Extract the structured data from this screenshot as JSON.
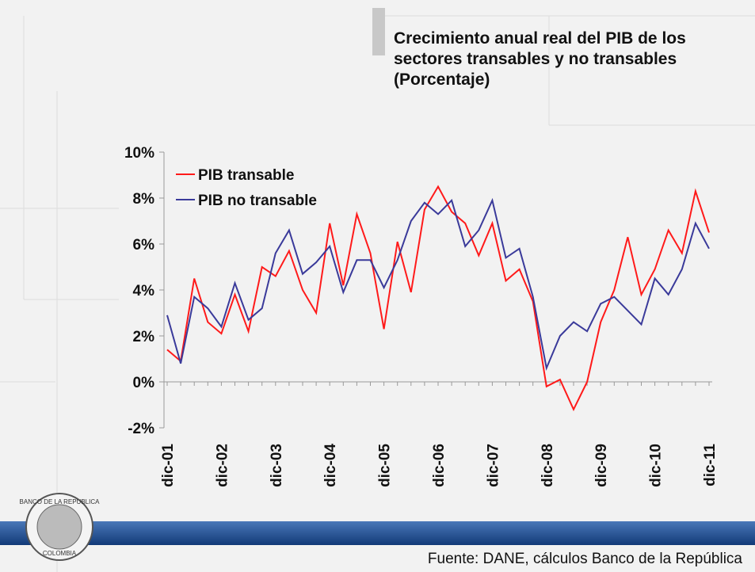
{
  "chart_data": {
    "type": "line",
    "title": "Crecimiento anual real del PIB de los sectores transables y no transables",
    "subtitle": "(Porcentaje)",
    "categories": [
      "dic-01",
      null,
      null,
      null,
      "dic-02",
      null,
      null,
      null,
      "dic-03",
      null,
      null,
      null,
      "dic-04",
      null,
      null,
      null,
      "dic-05",
      null,
      null,
      null,
      "dic-06",
      null,
      null,
      null,
      "dic-07",
      null,
      null,
      null,
      "dic-08",
      null,
      null,
      null,
      "dic-09",
      null,
      null,
      null,
      "dic-10",
      null,
      null,
      null,
      "dic-11"
    ],
    "series": [
      {
        "name": "PIB transable",
        "color": "#ff1a1a",
        "values": [
          1.4,
          0.9,
          4.5,
          2.6,
          2.1,
          3.8,
          2.2,
          5.0,
          4.6,
          5.7,
          4.0,
          3.0,
          6.9,
          4.2,
          7.3,
          5.6,
          2.3,
          6.1,
          3.9,
          7.5,
          8.5,
          7.4,
          6.9,
          5.5,
          6.9,
          4.4,
          4.9,
          3.5,
          -0.2,
          0.1,
          -1.2,
          0.0,
          2.6,
          4.0,
          6.3,
          3.8,
          4.9,
          6.6,
          5.6,
          8.3,
          6.5
        ]
      },
      {
        "name": "PIB no transable",
        "color": "#3a3a9a",
        "values": [
          2.9,
          0.8,
          3.7,
          3.2,
          2.4,
          4.3,
          2.7,
          3.2,
          5.6,
          6.6,
          4.7,
          5.2,
          5.9,
          3.9,
          5.3,
          5.3,
          4.1,
          5.3,
          7.0,
          7.8,
          7.3,
          7.9,
          5.9,
          6.6,
          7.9,
          5.4,
          5.8,
          3.7,
          0.6,
          2.0,
          2.6,
          2.2,
          3.4,
          3.7,
          3.1,
          2.5,
          4.5,
          3.8,
          4.9,
          6.9,
          5.8
        ]
      }
    ],
    "ylim": [
      -2,
      10
    ],
    "yticks": [
      {
        "value": -2,
        "label": "-2%"
      },
      {
        "value": 0,
        "label": "0%"
      },
      {
        "value": 2,
        "label": "2%"
      },
      {
        "value": 4,
        "label": "4%"
      },
      {
        "value": 6,
        "label": "6%"
      },
      {
        "value": 8,
        "label": "8%"
      },
      {
        "value": 10,
        "label": "10%"
      }
    ],
    "legend": "upper left",
    "source": "Fuente: DANE, cálculos Banco de la República",
    "logo": {
      "top": "BANCO DE LA REPUBLICA",
      "bottom": "COLOMBIA"
    }
  }
}
